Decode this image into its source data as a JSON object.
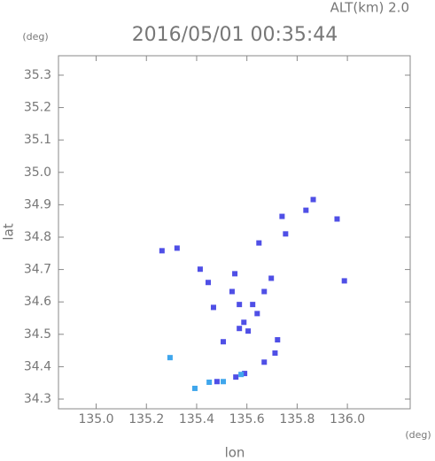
{
  "chart_data": {
    "type": "scatter",
    "title": "2016/05/01 00:35:44",
    "annotation": "ALT(km) 2.0",
    "y_unit": "(deg)",
    "x_unit": "(deg)",
    "xlabel": "lon",
    "ylabel": "lat",
    "xlim": [
      134.85,
      136.25
    ],
    "ylim": [
      34.27,
      35.36
    ],
    "xticks": [
      {
        "value": 135.0,
        "label": "135.0"
      },
      135.2,
      135.4,
      135.6,
      135.8,
      {
        "value": 136.0,
        "label": "136.0"
      }
    ],
    "yticks": [
      34.3,
      34.4,
      34.5,
      34.6,
      34.7,
      34.8,
      34.9,
      {
        "value": 35.0,
        "label": "35.0"
      },
      35.1,
      35.2,
      35.3
    ],
    "series": [
      {
        "color": "#4f4fe6",
        "x": [
          135.262,
          135.322,
          135.414,
          135.446,
          135.467,
          135.506,
          135.552,
          135.541,
          135.57,
          135.588,
          135.605,
          135.641,
          135.669,
          135.697,
          135.648,
          135.74,
          135.754,
          135.835,
          135.864,
          135.959,
          135.988,
          135.722,
          135.712,
          135.669,
          135.591,
          135.556,
          135.481,
          135.57,
          135.623
        ],
        "values": [
          34.758,
          34.766,
          34.701,
          34.66,
          34.583,
          34.477,
          34.687,
          34.632,
          34.592,
          34.537,
          34.51,
          34.564,
          34.632,
          34.673,
          34.782,
          34.864,
          34.81,
          34.883,
          34.916,
          34.856,
          34.665,
          34.483,
          34.442,
          34.414,
          34.379,
          34.368,
          34.354,
          34.518,
          34.592
        ]
      },
      {
        "color": "#3fa6ec",
        "x": [
          135.294,
          135.45,
          135.393,
          135.577,
          135.506
        ],
        "values": [
          34.428,
          34.352,
          34.333,
          34.376,
          34.354
        ]
      }
    ]
  }
}
